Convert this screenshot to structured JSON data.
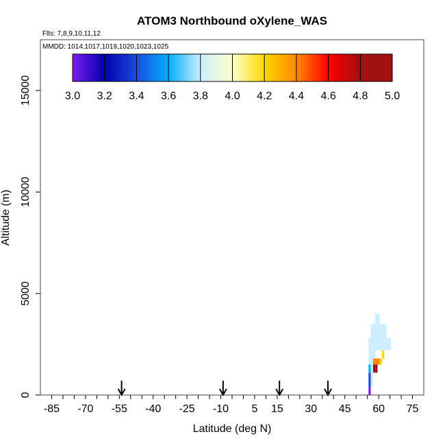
{
  "chart_data": {
    "type": "heatmap",
    "title": "ATOM3 Northbound oXylene_WAS",
    "flights_label": "Flts: 7,8,9,10,11,12",
    "mmdd_label": "MMDD: 1014,1017,1019,1020,1023,1025",
    "xlabel": "Latitude (deg N)",
    "ylabel": "Altitude (m)",
    "xlim": [
      -90,
      80
    ],
    "ylim": [
      0,
      17500
    ],
    "x_ticks": [
      -85,
      -70,
      -55,
      -40,
      -25,
      -10,
      5,
      15,
      30,
      45,
      60,
      75
    ],
    "x_minor_step": 5,
    "y_ticks": [
      0,
      5000,
      10000,
      15000
    ],
    "colorbar": {
      "min": 3.0,
      "max": 5.0,
      "tick_labels": [
        "3.0",
        "3.2",
        "3.4",
        "3.6",
        "3.8",
        "4.0",
        "4.2",
        "4.4",
        "4.6",
        "4.8",
        "5.0"
      ],
      "colors": [
        "#7a1cf0",
        "#0000aa",
        "#1a4de0",
        "#00b0ff",
        "#cceeff",
        "#ffffcc",
        "#ffd700",
        "#ff8800",
        "#ff0000",
        "#a01010"
      ]
    },
    "arrows_lat": [
      -54,
      -9,
      16,
      37.5
    ],
    "cells": [
      {
        "lat": 55.5,
        "lat2": 65.5,
        "alt": 2200,
        "alt2": 2800,
        "value": 3.9
      },
      {
        "lat": 56.5,
        "lat2": 63.5,
        "alt": 2800,
        "alt2": 3500,
        "value": 3.9
      },
      {
        "lat": 58.5,
        "lat2": 60.5,
        "alt": 3500,
        "alt2": 4000,
        "value": 3.95
      },
      {
        "lat": 55.5,
        "lat2": 58.5,
        "alt": 1800,
        "alt2": 2200,
        "value": 3.9
      },
      {
        "lat": 61.5,
        "lat2": 62.5,
        "alt": 1800,
        "alt2": 2200,
        "value": 4.3
      },
      {
        "lat": 55.5,
        "lat2": 57.5,
        "alt": 1500,
        "alt2": 1800,
        "value": 3.95
      },
      {
        "lat": 57.5,
        "lat2": 58.5,
        "alt": 1500,
        "alt2": 1800,
        "value": 4.6
      },
      {
        "lat": 58.5,
        "lat2": 60.5,
        "alt": 1500,
        "alt2": 1800,
        "value": 4.5
      },
      {
        "lat": 60.5,
        "lat2": 61.5,
        "alt": 1500,
        "alt2": 1800,
        "value": 4.3
      },
      {
        "lat": 55.5,
        "lat2": 56.5,
        "alt": 1100,
        "alt2": 1500,
        "value": 3.65
      },
      {
        "lat": 56.5,
        "lat2": 57.5,
        "alt": 1100,
        "alt2": 1500,
        "value": 3.9
      },
      {
        "lat": 57.5,
        "lat2": 58.5,
        "alt": 1100,
        "alt2": 1500,
        "value": 4.8
      },
      {
        "lat": 58.5,
        "lat2": 59.5,
        "alt": 1100,
        "alt2": 1500,
        "value": 4.95
      },
      {
        "lat": 55.5,
        "lat2": 56.5,
        "alt": 400,
        "alt2": 1100,
        "value": 3.45
      },
      {
        "lat": 56.5,
        "lat2": 57.5,
        "alt": 400,
        "alt2": 1100,
        "value": 3.85
      },
      {
        "lat": 55.5,
        "lat2": 56.5,
        "alt": 0,
        "alt2": 400,
        "value": 3.05
      },
      {
        "lat": 56.5,
        "lat2": 57.0,
        "alt": 0,
        "alt2": 400,
        "value": 4.0
      }
    ]
  }
}
